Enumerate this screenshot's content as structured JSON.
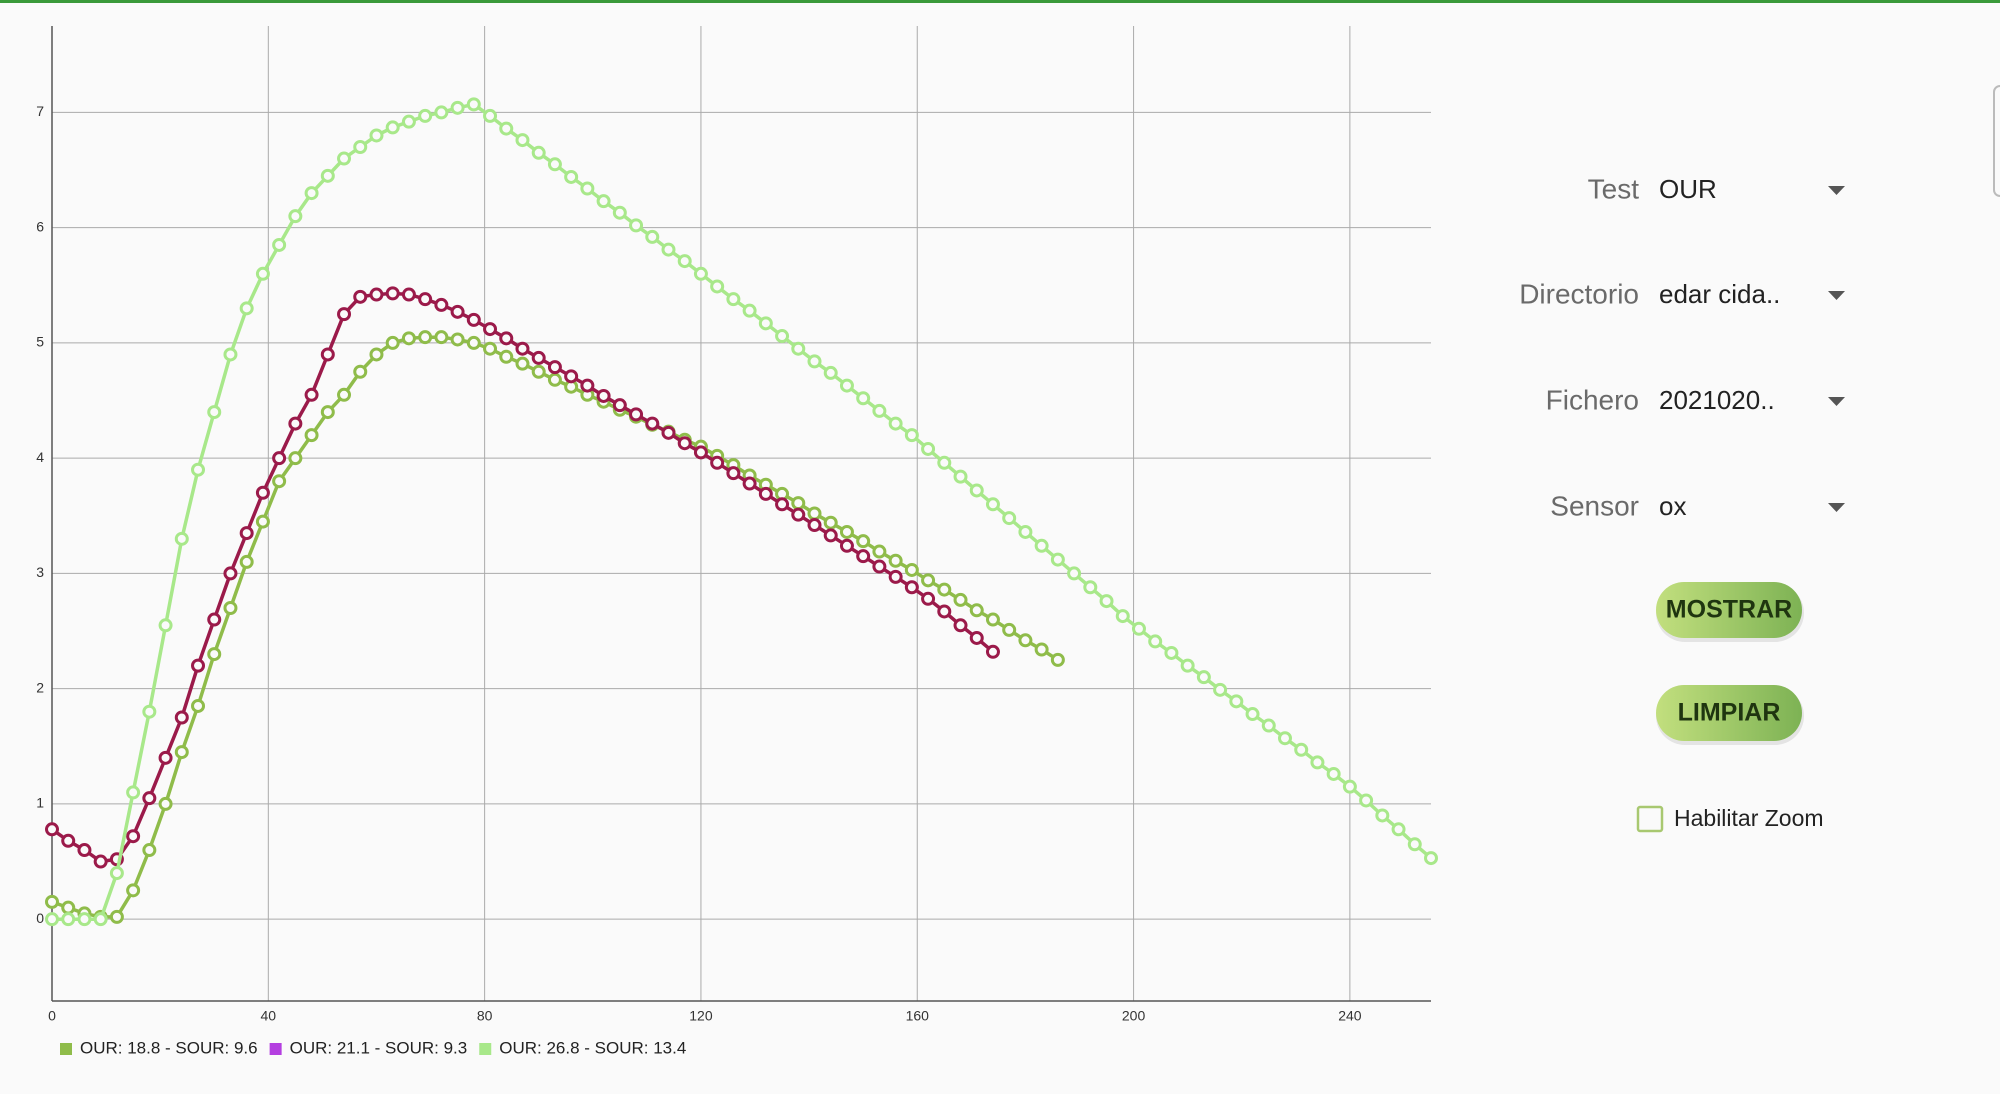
{
  "chart_data": {
    "type": "line",
    "x": [
      0,
      3,
      6,
      9,
      12,
      15,
      18,
      21,
      24,
      27,
      30,
      33,
      36,
      39,
      42,
      45,
      48,
      51,
      54,
      57,
      60,
      63,
      66,
      69,
      72,
      75,
      78,
      81,
      84,
      87,
      90,
      93,
      96,
      99,
      102,
      105,
      108,
      111,
      114,
      117,
      120,
      123,
      126,
      129,
      132,
      135,
      138,
      141,
      144,
      147,
      150,
      153,
      156,
      159,
      162,
      165,
      168,
      171,
      174,
      177,
      180,
      183,
      186,
      189,
      192,
      195,
      198,
      201,
      204,
      207,
      210,
      213,
      216,
      219,
      222,
      225,
      228,
      231,
      234,
      237,
      240,
      243,
      246,
      249,
      252,
      255
    ],
    "series": [
      {
        "name": "OUR: 18.8 - SOUR: 9.6",
        "color": "#8fbc4a",
        "legend_color": "#8fbc4a",
        "values": [
          0.15,
          0.1,
          0.05,
          0.02,
          0.02,
          0.25,
          0.6,
          1.0,
          1.45,
          1.85,
          2.3,
          2.7,
          3.1,
          3.45,
          3.8,
          4.0,
          4.2,
          4.4,
          4.55,
          4.75,
          4.9,
          5.0,
          5.04,
          5.05,
          5.05,
          5.03,
          5.0,
          4.95,
          4.88,
          4.82,
          4.75,
          4.68,
          4.62,
          4.55,
          4.49,
          4.42,
          4.36,
          4.29,
          4.23,
          4.16,
          4.1,
          4.02,
          3.94,
          3.85,
          3.77,
          3.69,
          3.61,
          3.52,
          3.44,
          3.36,
          3.28,
          3.19,
          3.11,
          3.03,
          2.94,
          2.86,
          2.77,
          2.68,
          2.6,
          2.51,
          2.42,
          2.34,
          2.25,
          null,
          null,
          null,
          null,
          null,
          null,
          null,
          null,
          null,
          null,
          null,
          null,
          null,
          null,
          null,
          null,
          null,
          null,
          null,
          null,
          null,
          null,
          null
        ]
      },
      {
        "name": "OUR: 21.1 - SOUR: 9.3",
        "color": "#9b1a4a",
        "legend_color": "#b43fe0",
        "values": [
          0.78,
          0.68,
          0.6,
          0.5,
          0.52,
          0.72,
          1.05,
          1.4,
          1.75,
          2.2,
          2.6,
          3.0,
          3.35,
          3.7,
          4.0,
          4.3,
          4.55,
          4.9,
          5.25,
          5.4,
          5.42,
          5.43,
          5.42,
          5.38,
          5.33,
          5.27,
          5.2,
          5.12,
          5.04,
          4.95,
          4.87,
          4.79,
          4.71,
          4.63,
          4.54,
          4.46,
          4.38,
          4.3,
          4.22,
          4.13,
          4.05,
          3.96,
          3.87,
          3.78,
          3.69,
          3.6,
          3.51,
          3.42,
          3.33,
          3.24,
          3.15,
          3.06,
          2.97,
          2.88,
          2.78,
          2.67,
          2.55,
          2.44,
          2.32,
          null,
          null,
          null,
          null,
          null,
          null,
          null,
          null,
          null,
          null,
          null,
          null,
          null,
          null,
          null,
          null,
          null,
          null,
          null,
          null,
          null,
          null,
          null,
          null,
          null,
          null,
          null
        ]
      },
      {
        "name": "OUR: 26.8 - SOUR: 13.4",
        "color": "#a8e88a",
        "legend_color": "#a8e88a",
        "values": [
          0,
          0,
          0,
          0,
          0.4,
          1.1,
          1.8,
          2.55,
          3.3,
          3.9,
          4.4,
          4.9,
          5.3,
          5.6,
          5.85,
          6.1,
          6.3,
          6.45,
          6.6,
          6.7,
          6.8,
          6.87,
          6.92,
          6.97,
          7.0,
          7.04,
          7.07,
          6.97,
          6.86,
          6.76,
          6.65,
          6.55,
          6.44,
          6.34,
          6.23,
          6.13,
          6.02,
          5.92,
          5.81,
          5.71,
          5.6,
          5.49,
          5.38,
          5.28,
          5.17,
          5.06,
          4.95,
          4.84,
          4.74,
          4.63,
          4.52,
          4.41,
          4.3,
          4.2,
          4.08,
          3.96,
          3.84,
          3.72,
          3.6,
          3.48,
          3.36,
          3.24,
          3.12,
          3.0,
          2.88,
          2.76,
          2.63,
          2.52,
          2.41,
          2.31,
          2.2,
          2.1,
          1.99,
          1.89,
          1.78,
          1.68,
          1.57,
          1.47,
          1.36,
          1.26,
          1.15,
          1.03,
          0.9,
          0.78,
          0.65,
          0.53
        ]
      }
    ],
    "xlim": [
      0,
      255
    ],
    "xticks": [
      0,
      40,
      80,
      120,
      160,
      200,
      240
    ],
    "ylim": [
      -0.71,
      7.75
    ],
    "yticks": [
      0,
      1,
      2,
      3,
      4,
      5,
      6,
      7
    ],
    "grid": true,
    "legend": "bottom-left"
  },
  "controls": {
    "rows": [
      {
        "label": "Test",
        "value": "OUR"
      },
      {
        "label": "Directorio",
        "value": "edar cida.."
      },
      {
        "label": "Fichero",
        "value": "2021020.."
      },
      {
        "label": "Sensor",
        "value": "ox"
      }
    ],
    "buttons": [
      "MOSTRAR",
      "LIMPIAR"
    ],
    "checkbox": "Habilitar Zoom"
  }
}
